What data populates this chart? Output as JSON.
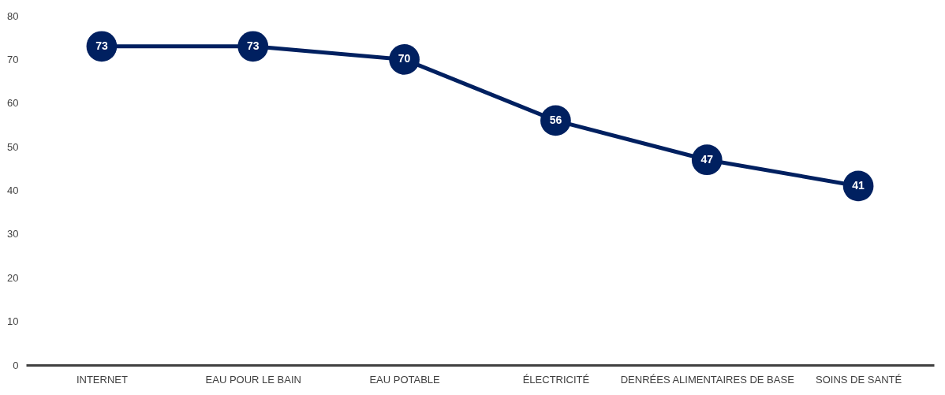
{
  "chart_data": {
    "type": "line",
    "categories": [
      "INTERNET",
      "EAU POUR LE BAIN",
      "EAU POTABLE",
      "ÉLECTRICITÉ",
      "DENRÉES ALIMENTAIRES DE BASE",
      "SOINS DE SANTÉ"
    ],
    "series": [
      {
        "color": "#002060",
        "values": [
          73,
          73,
          70,
          56,
          47,
          41
        ]
      }
    ],
    "ylim": [
      0,
      80
    ],
    "yticks": [
      0,
      10,
      20,
      30,
      40,
      50,
      60,
      70,
      80
    ],
    "grid": false,
    "marker": "circle",
    "line_style": "solid",
    "data_labels": true
  }
}
